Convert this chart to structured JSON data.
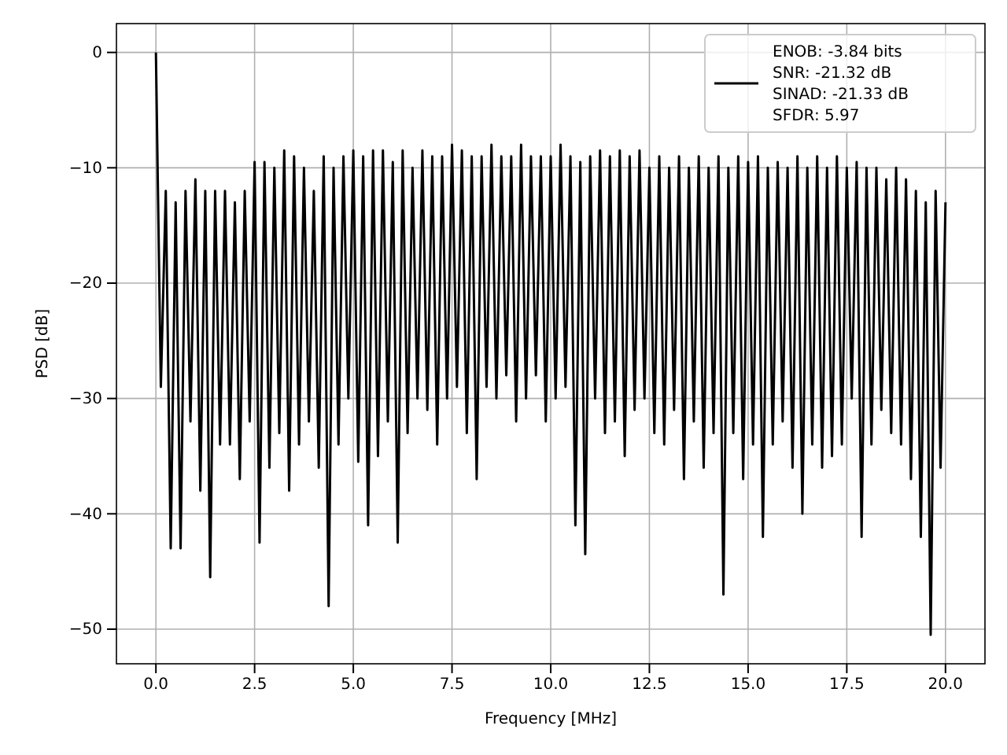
{
  "chart_data": {
    "type": "line",
    "xlabel": "Frequency [MHz]",
    "ylabel": "PSD [dB]",
    "xlim": [
      -1,
      21
    ],
    "ylim": [
      -53,
      2.5
    ],
    "xticks": [
      {
        "value": 0,
        "label": "0.0"
      },
      {
        "value": 2.5,
        "label": "2.5"
      },
      {
        "value": 5,
        "label": "5.0"
      },
      {
        "value": 7.5,
        "label": "7.5"
      },
      {
        "value": 10,
        "label": "10.0"
      },
      {
        "value": 12.5,
        "label": "12.5"
      },
      {
        "value": 15,
        "label": "15.0"
      },
      {
        "value": 17.5,
        "label": "17.5"
      },
      {
        "value": 20,
        "label": "20.0"
      }
    ],
    "yticks": [
      {
        "value": 0,
        "label": "0"
      },
      {
        "value": -10,
        "label": "−10"
      },
      {
        "value": -20,
        "label": "−20"
      },
      {
        "value": -30,
        "label": "−30"
      },
      {
        "value": -40,
        "label": "−40"
      },
      {
        "value": -50,
        "label": "−50"
      }
    ],
    "grid": true,
    "legend": "top right",
    "marker": "none",
    "line_style": "solid",
    "series": [
      {
        "name": "ENOB: -3.84 bits\nSNR: -21.32 dB\nSINAD: -21.33 dB\nSFDR: 5.97",
        "color": "#000000",
        "x": [
          0,
          0.125,
          0.25,
          0.375,
          0.5,
          0.625,
          0.75,
          0.875,
          1,
          1.125,
          1.25,
          1.375,
          1.5,
          1.625,
          1.75,
          1.875,
          2,
          2.125,
          2.25,
          2.375,
          2.5,
          2.625,
          2.75,
          2.875,
          3,
          3.125,
          3.25,
          3.375,
          3.5,
          3.625,
          3.75,
          3.875,
          4,
          4.125,
          4.25,
          4.375,
          4.5,
          4.625,
          4.75,
          4.875,
          5,
          5.125,
          5.25,
          5.375,
          5.5,
          5.625,
          5.75,
          5.875,
          6,
          6.125,
          6.25,
          6.375,
          6.5,
          6.625,
          6.75,
          6.875,
          7,
          7.125,
          7.25,
          7.375,
          7.5,
          7.625,
          7.75,
          7.875,
          8,
          8.125,
          8.25,
          8.375,
          8.5,
          8.625,
          8.75,
          8.875,
          9,
          9.125,
          9.25,
          9.375,
          9.5,
          9.625,
          9.75,
          9.875,
          10,
          10.125,
          10.25,
          10.375,
          10.5,
          10.625,
          10.75,
          10.875,
          11,
          11.125,
          11.25,
          11.375,
          11.5,
          11.625,
          11.75,
          11.875,
          12,
          12.125,
          12.25,
          12.375,
          12.5,
          12.625,
          12.75,
          12.875,
          13,
          13.125,
          13.25,
          13.375,
          13.5,
          13.625,
          13.75,
          13.875,
          14,
          14.125,
          14.25,
          14.375,
          14.5,
          14.625,
          14.75,
          14.875,
          15,
          15.125,
          15.25,
          15.375,
          15.5,
          15.625,
          15.75,
          15.875,
          16,
          16.125,
          16.25,
          16.375,
          16.5,
          16.625,
          16.75,
          16.875,
          17,
          17.125,
          17.25,
          17.375,
          17.5,
          17.625,
          17.75,
          17.875,
          18,
          18.125,
          18.25,
          18.375,
          18.5,
          18.625,
          18.75,
          18.875,
          19,
          19.125,
          19.25,
          19.375,
          19.5,
          19.625,
          19.75,
          19.875,
          20
        ],
        "values": [
          0,
          -29,
          -12,
          -43,
          -13,
          -43,
          -12,
          -32,
          -11,
          -38,
          -12,
          -45.5,
          -12,
          -34,
          -12,
          -34,
          -13,
          -37,
          -12,
          -32,
          -9.5,
          -42.5,
          -9.5,
          -36,
          -10,
          -33,
          -8.5,
          -38,
          -9,
          -34,
          -10,
          -32,
          -12,
          -36,
          -9,
          -48,
          -10,
          -34,
          -9,
          -30,
          -8.5,
          -35.5,
          -9,
          -41,
          -8.5,
          -35,
          -8.5,
          -32,
          -9.5,
          -42.5,
          -8.5,
          -33,
          -10,
          -30,
          -8.5,
          -31,
          -9,
          -34,
          -9,
          -30,
          -8,
          -29,
          -8.5,
          -33,
          -9,
          -37,
          -9,
          -29,
          -8,
          -30,
          -9,
          -28,
          -9,
          -32,
          -8,
          -30,
          -9,
          -28,
          -9,
          -32,
          -9,
          -30,
          -8,
          -29,
          -9,
          -41,
          -9.5,
          -43.5,
          -9,
          -30,
          -8.5,
          -33,
          -9,
          -32,
          -8.5,
          -35,
          -9,
          -31,
          -8.5,
          -30,
          -10,
          -33,
          -9,
          -34,
          -10,
          -31,
          -9,
          -37,
          -10,
          -32,
          -9,
          -36,
          -10,
          -33,
          -9,
          -47,
          -10,
          -33,
          -9,
          -37,
          -9.5,
          -34,
          -9,
          -42,
          -10,
          -34,
          -9.5,
          -32,
          -10,
          -36,
          -9,
          -40,
          -10,
          -34,
          -9,
          -36,
          -10,
          -35,
          -9,
          -34,
          -10,
          -30,
          -9.5,
          -42,
          -10,
          -34,
          -10,
          -31,
          -11,
          -33,
          -10,
          -34,
          -11,
          -37,
          -12,
          -42,
          -13,
          -50.5,
          -12,
          -36,
          -13
        ]
      }
    ]
  }
}
